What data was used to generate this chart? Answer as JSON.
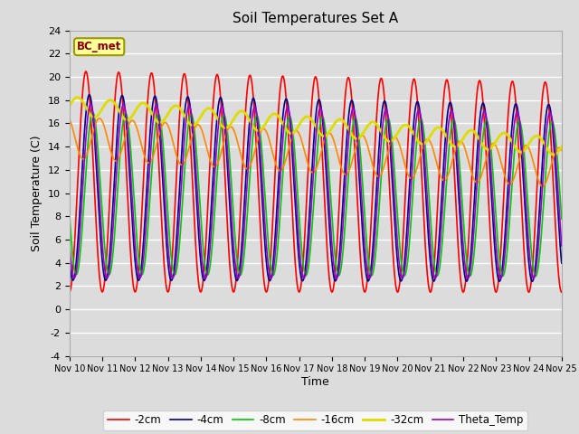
{
  "title": "Soil Temperatures Set A",
  "xlabel": "Time",
  "ylabel": "Soil Temperature (C)",
  "ylim": [
    -4,
    24
  ],
  "xlim": [
    0,
    360
  ],
  "annotation": "BC_met",
  "bg_color": "#dcdcdc",
  "fig_bg_color": "#dcdcdc",
  "grid_color": "#ffffff",
  "series": {
    "-2cm": {
      "color": "#ff0000",
      "lw": 1.2,
      "amp": 9.5,
      "mean_start": 11.0,
      "mean_end": 10.5,
      "phase_hrs": 6.0
    },
    "-4cm": {
      "color": "#00008b",
      "lw": 1.2,
      "amp": 8.0,
      "mean_start": 10.5,
      "mean_end": 10.0,
      "phase_hrs": 8.5
    },
    "-8cm": {
      "color": "#00cc00",
      "lw": 1.2,
      "amp": 7.0,
      "mean_start": 10.0,
      "mean_end": 9.5,
      "phase_hrs": 11.0
    },
    "-16cm": {
      "color": "#ff8800",
      "lw": 1.2,
      "amp": 1.8,
      "mean_start": 14.8,
      "mean_end": 12.2,
      "phase_hrs": 16.0
    },
    "-32cm": {
      "color": "#dddd00",
      "lw": 2.0,
      "amp": 0.8,
      "mean_start": 17.5,
      "mean_end": 14.0,
      "phase_hrs": 0.0
    },
    "Theta_Temp": {
      "color": "#9900cc",
      "lw": 1.2,
      "amp": 7.5,
      "mean_start": 10.2,
      "mean_end": 9.8,
      "phase_hrs": 9.5
    }
  },
  "legend_order": [
    "-2cm",
    "-4cm",
    "-8cm",
    "-16cm",
    "-32cm",
    "Theta_Temp"
  ],
  "xtick_labels": [
    "Nov 10",
    "Nov 11",
    "Nov 12",
    "Nov 13",
    "Nov 14",
    "Nov 15",
    "Nov 16",
    "Nov 17",
    "Nov 18",
    "Nov 19",
    "Nov 20",
    "Nov 21",
    "Nov 22",
    "Nov 23",
    "Nov 24",
    "Nov 25"
  ],
  "ytick_values": [
    -4,
    -2,
    0,
    2,
    4,
    6,
    8,
    10,
    12,
    14,
    16,
    18,
    20,
    22,
    24
  ]
}
